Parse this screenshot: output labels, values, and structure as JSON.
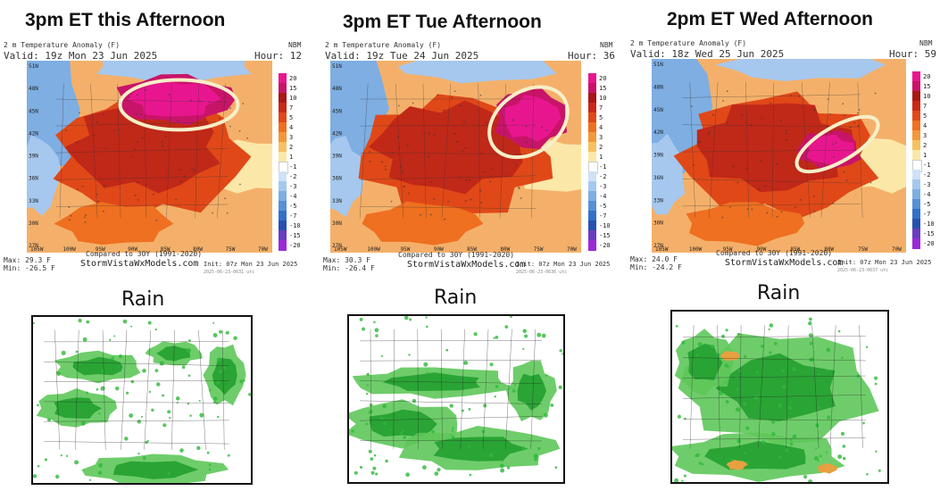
{
  "panels": [
    {
      "title": "3pm ET this Afternoon",
      "header_line1": "2 m Temperature Anomaly (F)",
      "header_line2": "Valid: 19z Mon 23 Jun 2025",
      "model": "NBM",
      "hour": "Hour: 12",
      "max": "Max: 29.3 F",
      "min": "Min: -26.5 F",
      "compared": "Compared to 30Y (1991-2020)",
      "brand": "StormVistaWxModels.com",
      "init": "Init: 07z Mon 23 Jun 2025",
      "stamp": "2025-06-23-0631 utc",
      "lat_labels": [
        "51N",
        "48N",
        "45N",
        "42N",
        "39N",
        "36N",
        "33N",
        "30N",
        "27N"
      ],
      "lon_labels": [
        "105W",
        "100W",
        "95W",
        "90W",
        "85W",
        "80W",
        "75W",
        "70W"
      ],
      "rain_label": "Rain"
    },
    {
      "title": "3pm ET Tue Afternoon",
      "header_line1": "2 m Temperature Anomaly (F)",
      "header_line2": "Valid: 19z Tue 24 Jun 2025",
      "model": "NBM",
      "hour": "Hour: 36",
      "max": "Max: 30.3 F",
      "min": "Min: -26.4 F",
      "compared": "Compared to 30Y (1991-2020)",
      "brand": "StormVistaWxModels.com",
      "init": "Init: 07z Mon 23 Jun 2025",
      "stamp": "2025-06-23-0636 utc",
      "lat_labels": [
        "51N",
        "48N",
        "45N",
        "42N",
        "39N",
        "36N",
        "33N",
        "30N",
        "27N"
      ],
      "lon_labels": [
        "105W",
        "100W",
        "95W",
        "90W",
        "85W",
        "80W",
        "75W",
        "70W"
      ],
      "rain_label": "Rain"
    },
    {
      "title": "2pm ET Wed Afternoon",
      "header_line1": "2 m Temperature Anomaly (F)",
      "header_line2": "Valid: 18z Wed 25 Jun 2025",
      "model": "NBM",
      "hour": "Hour: 59",
      "max": "Max: 24.0 F",
      "min": "Min: -24.2 F",
      "compared": "Compared to 30Y (1991-2020)",
      "brand": "StormVistaWxModels.com",
      "init": "Init: 07z Mon 23 Jun 2025",
      "stamp": "2025-06-23-0637 utc",
      "lat_labels": [
        "51N",
        "48N",
        "45N",
        "42N",
        "39N",
        "36N",
        "33N",
        "30N",
        "27N"
      ],
      "lon_labels": [
        "105W",
        "100W",
        "95W",
        "90W",
        "85W",
        "80W",
        "75W",
        "70W"
      ],
      "rain_label": "Rain"
    }
  ],
  "colorbar": {
    "ticks": [
      "20",
      "15",
      "10",
      "7",
      "5",
      "4",
      "3",
      "2",
      "1",
      "-1",
      "-2",
      "-3",
      "-4",
      "-5",
      "-7",
      "-10",
      "-15",
      "-20"
    ],
    "colors": [
      "#e8168e",
      "#c81468",
      "#a81818",
      "#c82818",
      "#e04818",
      "#ee7020",
      "#f29838",
      "#f6c060",
      "#fbe8a8",
      "#ffffff",
      "#cfe2f6",
      "#a6c8ee",
      "#7eaee2",
      "#5690d6",
      "#3270c8",
      "#2850b0",
      "#6a3cc0",
      "#9a2ad8"
    ]
  },
  "colors": {
    "hot_core": "#e8168e",
    "hot_red": "#c02818",
    "warm_orange": "#f08828",
    "cool_blue": "#5a86d6",
    "rain_green": "#22b030"
  }
}
